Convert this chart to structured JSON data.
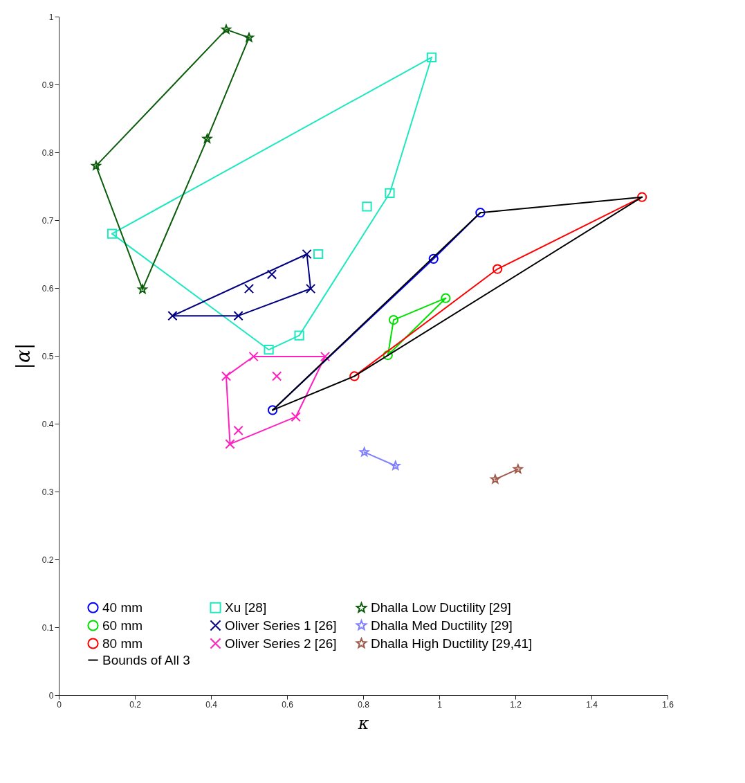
{
  "chart_data": {
    "type": "scatter",
    "xlabel": "κ",
    "ylabel": "|α|",
    "xlim": [
      0,
      1.6
    ],
    "ylim": [
      0,
      1
    ],
    "xticks": [
      0,
      0.2,
      0.4,
      0.6,
      0.8,
      1,
      1.2,
      1.4,
      1.6
    ],
    "yticks": [
      0,
      0.1,
      0.2,
      0.3,
      0.4,
      0.5,
      0.6,
      0.7,
      0.8,
      0.9,
      1
    ],
    "grid": false,
    "legend": "bottom left",
    "series": [
      {
        "name": "40 mm",
        "marker": "circle",
        "color": "#0000ff",
        "x": [
          0.562,
          0.985,
          1.108
        ],
        "values": [
          0.42,
          0.643,
          0.711
        ]
      },
      {
        "name": "Xu [28]",
        "marker": "square",
        "color": "#1ee8c0",
        "x": [
          0.98,
          0.87,
          0.81,
          0.682,
          0.14,
          0.552,
          0.632
        ],
        "values": [
          0.94,
          0.74,
          0.72,
          0.65,
          0.68,
          0.509,
          0.53
        ]
      },
      {
        "name": "Dhalla Low Ductility [29]",
        "marker": "star",
        "color": "#0a5c0a",
        "x": [
          0.44,
          0.5,
          0.39,
          0.098,
          0.22
        ],
        "values": [
          0.981,
          0.969,
          0.82,
          0.78,
          0.598
        ]
      },
      {
        "name": "60 mm",
        "marker": "circle",
        "color": "#00e000",
        "x": [
          0.865,
          0.88,
          1.017
        ],
        "values": [
          0.501,
          0.553,
          0.585
        ]
      },
      {
        "name": "Oliver Series 1 [26]",
        "marker": "cross",
        "color": "#000080",
        "x": [
          0.299,
          0.472,
          0.662,
          0.652,
          0.56,
          0.5
        ],
        "values": [
          0.559,
          0.559,
          0.599,
          0.65,
          0.62,
          0.599
        ]
      },
      {
        "name": "Dhalla Med Ductility [29]",
        "marker": "star",
        "color": "#8080ff",
        "x": [
          0.803,
          0.885
        ],
        "values": [
          0.358,
          0.338
        ]
      },
      {
        "name": "80 mm",
        "marker": "circle",
        "color": "#ff0000",
        "x": [
          0.777,
          1.153,
          1.533
        ],
        "values": [
          0.47,
          0.628,
          0.734
        ]
      },
      {
        "name": "Oliver Series 2 [26]",
        "marker": "cross",
        "color": "#ff20c0",
        "x": [
          0.512,
          0.7,
          0.44,
          0.573,
          0.623,
          0.45,
          0.472
        ],
        "values": [
          0.499,
          0.499,
          0.47,
          0.47,
          0.41,
          0.37,
          0.39
        ]
      },
      {
        "name": "Dhalla High Ductility [29,41]",
        "marker": "star",
        "color": "#a05a4a",
        "x": [
          1.147,
          1.207
        ],
        "values": [
          0.318,
          0.333
        ]
      },
      {
        "type": "line",
        "color": "#0000ff",
        "x": [
          0.562,
          0.985,
          1.108
        ],
        "values": [
          0.42,
          0.643,
          0.711
        ]
      },
      {
        "type": "line",
        "color": "#1ee8c0",
        "x": [
          0.14,
          0.98
        ],
        "values": [
          0.68,
          0.94
        ]
      },
      {
        "type": "line",
        "color": "#1ee8c0",
        "x": [
          0.14,
          0.552,
          0.632,
          0.87,
          0.98
        ],
        "values": [
          0.68,
          0.509,
          0.53,
          0.74,
          0.94
        ]
      },
      {
        "type": "line",
        "color": "#0a5c0a",
        "x": [
          0.098,
          0.44,
          0.5
        ],
        "values": [
          0.78,
          0.981,
          0.969
        ]
      },
      {
        "type": "line",
        "color": "#0a5c0a",
        "x": [
          0.098,
          0.22,
          0.39,
          0.5
        ],
        "values": [
          0.78,
          0.598,
          0.82,
          0.969
        ]
      },
      {
        "type": "line",
        "color": "#00e000",
        "x": [
          0.865,
          0.88,
          1.017
        ],
        "values": [
          0.501,
          0.553,
          0.585
        ]
      },
      {
        "type": "line",
        "color": "#00e000",
        "x": [
          0.865,
          1.017
        ],
        "values": [
          0.501,
          0.585
        ]
      },
      {
        "type": "line",
        "color": "#000080",
        "x": [
          0.299,
          0.652,
          0.662
        ],
        "values": [
          0.559,
          0.65,
          0.599
        ]
      },
      {
        "type": "line",
        "color": "#000080",
        "x": [
          0.299,
          0.472,
          0.662
        ],
        "values": [
          0.559,
          0.559,
          0.599
        ]
      },
      {
        "type": "line",
        "color": "#8080ff",
        "x": [
          0.803,
          0.885
        ],
        "values": [
          0.358,
          0.338
        ]
      },
      {
        "type": "line",
        "color": "#ff0000",
        "x": [
          0.777,
          1.153,
          1.533
        ],
        "values": [
          0.47,
          0.628,
          0.734
        ]
      },
      {
        "type": "line",
        "color": "#ff20c0",
        "x": [
          0.44,
          0.512,
          0.7
        ],
        "values": [
          0.47,
          0.499,
          0.499
        ]
      },
      {
        "type": "line",
        "color": "#ff20c0",
        "x": [
          0.44,
          0.45,
          0.623,
          0.7
        ],
        "values": [
          0.47,
          0.37,
          0.41,
          0.499
        ]
      },
      {
        "type": "line",
        "color": "#a05a4a",
        "x": [
          1.147,
          1.207
        ],
        "values": [
          0.318,
          0.333
        ]
      },
      {
        "type": "line",
        "color": "#000000",
        "x": [
          0.562,
          1.108,
          1.533
        ],
        "values": [
          0.42,
          0.711,
          0.734
        ]
      },
      {
        "name": "Bounds of All 3",
        "type": "line",
        "color": "#000000",
        "x": [
          0.562,
          0.777,
          1.533
        ],
        "values": [
          0.42,
          0.47,
          0.734
        ]
      }
    ]
  }
}
